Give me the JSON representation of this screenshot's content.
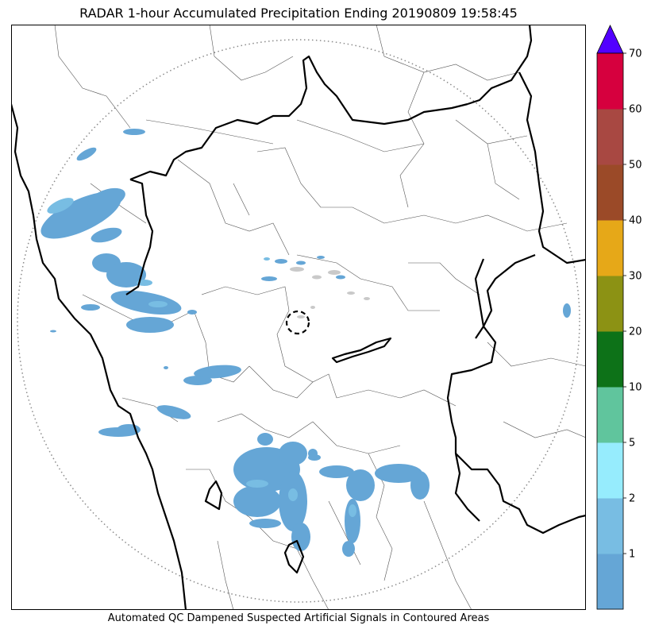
{
  "title": "RADAR 1-hour Accumulated Precipitation Ending 20190809 19:58:45",
  "footer_note": "Automated QC Dampened Suspected Artificial Signals in Contoured Areas",
  "colorbar": {
    "levels": [
      "1",
      "2",
      "5",
      "10",
      "20",
      "30",
      "40",
      "50",
      "60",
      "70"
    ],
    "colors": [
      "#65a6d6",
      "#78bde3",
      "#96ecfd",
      "#60c59d",
      "#0d7218",
      "#8c9214",
      "#e6a818",
      "#9b4a28",
      "#a84842",
      "#d6003e"
    ],
    "extend_color": "#5200ff"
  },
  "colors": {
    "frame": "#000000",
    "state_boundary": "#000000",
    "district_boundary": "#555555",
    "range_ring": "#8a8a8a",
    "precip_light": "#65a6d6",
    "precip_lighter": "#78bde3",
    "precip_qc": "#c9c9c9"
  },
  "map_features": {
    "range_ring": "dotted-circle",
    "radar_site_marker": "dashed-circle"
  }
}
